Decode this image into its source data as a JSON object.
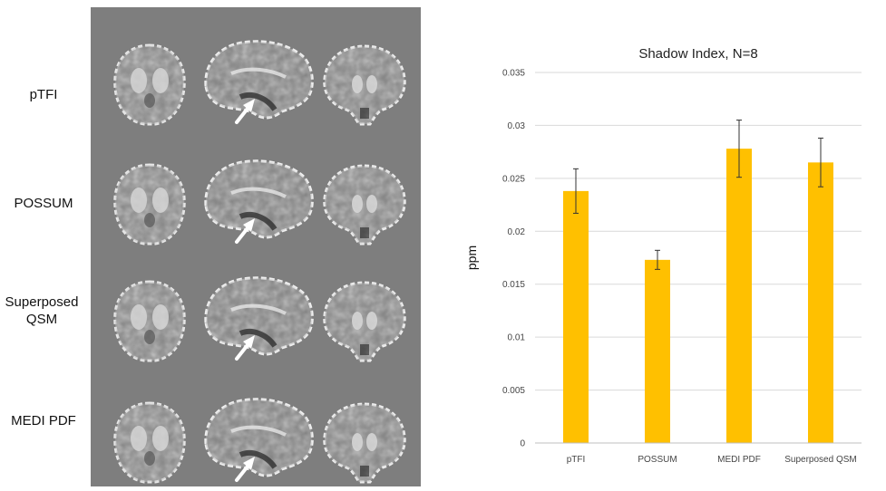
{
  "figure": {
    "rows": [
      {
        "label": "pTFI"
      },
      {
        "label": "POSSUM"
      },
      {
        "label": "Superposed QSM"
      },
      {
        "label": "MEDI PDF"
      }
    ],
    "views": [
      "axial",
      "sagittal",
      "coronal"
    ],
    "panel_background": "#7e7e7e"
  },
  "chart_data": {
    "type": "bar",
    "title": "Shadow Index, N=8",
    "xlabel": "",
    "ylabel": "ppm",
    "categories": [
      "pTFI",
      "POSSUM",
      "MEDI PDF",
      "Superposed QSM"
    ],
    "values": [
      0.0238,
      0.0173,
      0.0278,
      0.0265
    ],
    "errors": [
      0.0021,
      0.0009,
      0.0027,
      0.0023
    ],
    "ylim": [
      0,
      0.035
    ],
    "yticks": [
      "0",
      "0.005",
      "0.01",
      "0.015",
      "0.02",
      "0.025",
      "0.03",
      "0.035"
    ],
    "grid": true,
    "bar_color": "#FFC000"
  }
}
